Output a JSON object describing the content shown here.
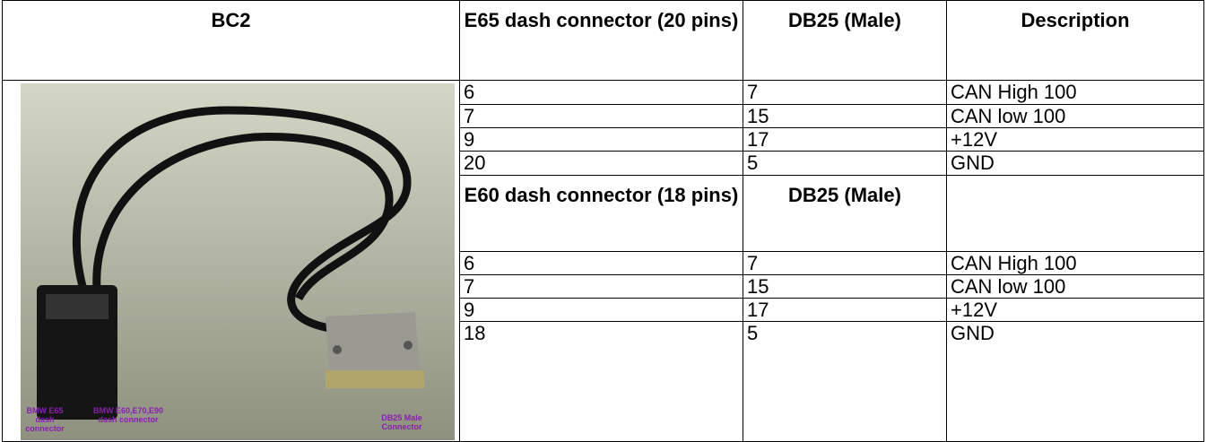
{
  "table": {
    "columns": [
      "BC2",
      "E65 dash connector (20 pins)",
      "DB25 (Male)",
      "Description"
    ],
    "rows": [
      [
        "6",
        "7",
        "CAN High 100"
      ],
      [
        "7",
        "15",
        "CAN low 100"
      ],
      [
        "9",
        "17",
        "+12V"
      ],
      [
        "20",
        "5",
        "GND"
      ]
    ],
    "subheader": [
      "E60 dash connector (18 pins)",
      "DB25 (Male)"
    ],
    "rows2": [
      [
        "6",
        "7",
        "CAN High 100"
      ],
      [
        "7",
        "15",
        "CAN low 100"
      ],
      [
        "9",
        "17",
        "+12V"
      ],
      [
        "18",
        "5",
        "GND"
      ]
    ],
    "image_labels": [
      "BMW E65 dash connector",
      "BMW E60,E70,E90 dash connector",
      "DB25 Male Connector"
    ]
  }
}
